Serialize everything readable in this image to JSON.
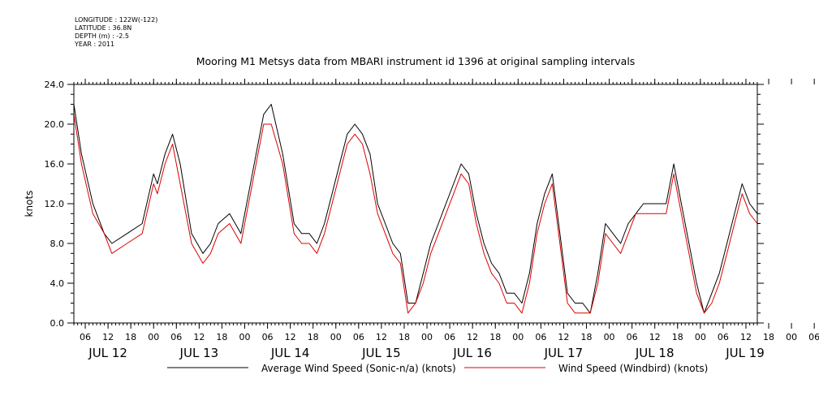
{
  "metadata": {
    "longitude": "LONGITUDE : 122W(-122)",
    "latitude": "LATITUDE : 36.8N",
    "depth": "DEPTH (m) : -2.5",
    "year": "YEAR : 2011"
  },
  "chart_data": {
    "type": "line",
    "title": "Mooring M1 Metsys data from MBARI instrument id 1396 at original sampling intervals",
    "ylabel": "knots",
    "xlabel": "",
    "ylim": [
      0,
      24
    ],
    "yticks": [
      "0.0",
      "4.0",
      "8.0",
      "12.0",
      "16.0",
      "20.0",
      "24.0"
    ],
    "xlim_hours": [
      3,
      183
    ],
    "hour_ticks": [
      "06",
      "12",
      "18",
      "00",
      "06",
      "12",
      "18",
      "00",
      "06",
      "12",
      "18",
      "00",
      "06",
      "12",
      "18",
      "00",
      "06",
      "12",
      "18",
      "00",
      "06",
      "12",
      "18",
      "00",
      "06",
      "12",
      "18",
      "00",
      "06",
      "12",
      "18",
      "00",
      "06"
    ],
    "day_labels": [
      "JUL 12",
      "JUL 13",
      "JUL 14",
      "JUL 15",
      "JUL 16",
      "JUL 17",
      "JUL 18",
      "JUL 19"
    ],
    "grid": false,
    "legend_position": "bottom",
    "series": [
      {
        "name": "Average Wind Speed (Sonic-n/a) (knots)",
        "color": "#000000",
        "x_hours": [
          3,
          5,
          8,
          11,
          13,
          17,
          21,
          24,
          25,
          27,
          29,
          31,
          34,
          37,
          39,
          41,
          44,
          47,
          49,
          51,
          53,
          55,
          58,
          61,
          63,
          65,
          67,
          69,
          71,
          73,
          75,
          77,
          79,
          81,
          83,
          85,
          87,
          89,
          91,
          93,
          95,
          97,
          99,
          101,
          103,
          105,
          107,
          109,
          111,
          113,
          115,
          117,
          119,
          121,
          123,
          125,
          127,
          129,
          131,
          133,
          135,
          137,
          139,
          141,
          143,
          145,
          147,
          149,
          151,
          153,
          155,
          157,
          159,
          161,
          163,
          165,
          167,
          169,
          171,
          173,
          175,
          177,
          179,
          181,
          183
        ],
        "values": [
          22,
          17,
          12,
          9,
          8,
          9,
          10,
          15,
          14,
          17,
          19,
          16,
          9,
          7,
          8,
          10,
          11,
          9,
          13,
          17,
          21,
          22,
          17,
          10,
          9,
          9,
          8,
          10,
          13,
          16,
          19,
          20,
          19,
          17,
          12,
          10,
          8,
          7,
          2,
          2,
          5,
          8,
          10,
          12,
          14,
          16,
          15,
          11,
          8,
          6,
          5,
          3,
          3,
          2,
          5,
          10,
          13,
          15,
          9,
          3,
          2,
          2,
          1,
          5,
          10,
          9,
          8,
          10,
          11,
          12,
          12,
          12,
          12,
          16,
          12,
          8,
          4,
          1,
          3,
          5,
          8,
          11,
          14,
          12,
          11
        ]
      },
      {
        "name": "Wind Speed (Windbird) (knots)",
        "color": "#dd0000",
        "x_hours": [
          3,
          5,
          8,
          11,
          13,
          17,
          21,
          24,
          25,
          27,
          29,
          31,
          34,
          37,
          39,
          41,
          44,
          47,
          49,
          51,
          53,
          55,
          58,
          61,
          63,
          65,
          67,
          69,
          71,
          73,
          75,
          77,
          79,
          81,
          83,
          85,
          87,
          89,
          91,
          93,
          95,
          97,
          99,
          101,
          103,
          105,
          107,
          109,
          111,
          113,
          115,
          117,
          119,
          121,
          123,
          125,
          127,
          129,
          131,
          133,
          135,
          137,
          139,
          141,
          143,
          145,
          147,
          149,
          151,
          153,
          155,
          157,
          159,
          161,
          163,
          165,
          167,
          169,
          171,
          173,
          175,
          177,
          179,
          181,
          183
        ],
        "values": [
          21,
          16,
          11,
          9,
          7,
          8,
          9,
          14,
          13,
          16,
          18,
          14,
          8,
          6,
          7,
          9,
          10,
          8,
          12,
          16,
          20,
          20,
          16,
          9,
          8,
          8,
          7,
          9,
          12,
          15,
          18,
          19,
          18,
          15,
          11,
          9,
          7,
          6,
          1,
          2,
          4,
          7,
          9,
          11,
          13,
          15,
          14,
          10,
          7,
          5,
          4,
          2,
          2,
          1,
          4,
          9,
          12,
          14,
          8,
          2,
          1,
          1,
          1,
          4,
          9,
          8,
          7,
          9,
          11,
          11,
          11,
          11,
          11,
          15,
          11,
          7,
          3,
          1,
          2,
          4,
          7,
          10,
          13,
          11,
          10
        ]
      }
    ]
  }
}
